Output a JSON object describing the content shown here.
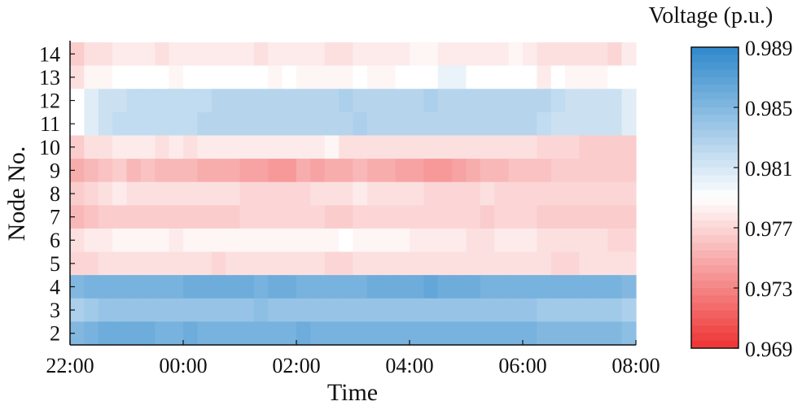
{
  "chart_data": {
    "type": "heatmap",
    "xlabel": "Time",
    "ylabel": "Node No.",
    "x_tick_labels": [
      "22:00",
      "00:00",
      "02:00",
      "04:00",
      "06:00",
      "08:00"
    ],
    "x_range": [
      "22:00",
      "08:00"
    ],
    "y_categories": [
      "14",
      "13",
      "12",
      "11",
      "10",
      "9",
      "8",
      "7",
      "6",
      "5",
      "4",
      "3",
      "2"
    ],
    "colorbar": {
      "title": "Voltage (p.u.)",
      "min": 0.969,
      "max": 0.989,
      "ticks": [
        "0.989",
        "0.985",
        "0.981",
        "0.977",
        "0.973",
        "0.969"
      ],
      "low_color": "#ee3333",
      "mid_color": "#ffffff",
      "high_color": "#2f88cc"
    },
    "grid": false,
    "series": [
      {
        "name": "14",
        "values": [
          0.9765,
          0.9775,
          0.9775,
          0.978,
          0.978,
          0.978,
          0.9775,
          0.978,
          0.978,
          0.978,
          0.978,
          0.978,
          0.978,
          0.9775,
          0.978,
          0.978,
          0.978,
          0.978,
          0.9775,
          0.9775,
          0.978,
          0.978,
          0.978,
          0.978,
          0.9785,
          0.9785,
          0.978,
          0.978,
          0.978,
          0.978,
          0.978,
          0.9785,
          0.978,
          0.9775,
          0.9775,
          0.9775,
          0.9775,
          0.9775,
          0.977,
          0.978
        ]
      },
      {
        "name": "13",
        "values": [
          0.9775,
          0.9785,
          0.9785,
          0.979,
          0.979,
          0.979,
          0.979,
          0.9785,
          0.979,
          0.979,
          0.979,
          0.979,
          0.979,
          0.979,
          0.9785,
          0.979,
          0.9785,
          0.9785,
          0.9785,
          0.9785,
          0.979,
          0.9785,
          0.9785,
          0.979,
          0.979,
          0.979,
          0.98,
          0.98,
          0.979,
          0.979,
          0.979,
          0.979,
          0.979,
          0.978,
          0.979,
          0.9785,
          0.9785,
          0.9785,
          0.979,
          0.979
        ]
      },
      {
        "name": "12",
        "values": [
          0.979,
          0.9805,
          0.9815,
          0.9815,
          0.982,
          0.982,
          0.982,
          0.982,
          0.982,
          0.982,
          0.9825,
          0.9825,
          0.9825,
          0.9825,
          0.9825,
          0.9825,
          0.9825,
          0.9825,
          0.9825,
          0.983,
          0.9825,
          0.9825,
          0.9825,
          0.9825,
          0.9825,
          0.983,
          0.9825,
          0.9825,
          0.9825,
          0.9825,
          0.9825,
          0.9825,
          0.9825,
          0.9825,
          0.982,
          0.9815,
          0.9815,
          0.9815,
          0.9815,
          0.9805
        ]
      },
      {
        "name": "11",
        "values": [
          0.979,
          0.9805,
          0.9815,
          0.982,
          0.982,
          0.982,
          0.982,
          0.982,
          0.982,
          0.9825,
          0.9825,
          0.9825,
          0.9825,
          0.9825,
          0.9825,
          0.9825,
          0.9825,
          0.9825,
          0.9825,
          0.9825,
          0.983,
          0.9825,
          0.9825,
          0.9825,
          0.9825,
          0.9825,
          0.9825,
          0.9825,
          0.9825,
          0.9825,
          0.9825,
          0.9825,
          0.9825,
          0.982,
          0.9815,
          0.9815,
          0.9815,
          0.9815,
          0.9815,
          0.9805
        ]
      },
      {
        "name": "10",
        "values": [
          0.9765,
          0.9775,
          0.9775,
          0.978,
          0.978,
          0.978,
          0.9775,
          0.978,
          0.9775,
          0.978,
          0.978,
          0.978,
          0.978,
          0.978,
          0.978,
          0.978,
          0.978,
          0.978,
          0.9785,
          0.9775,
          0.9775,
          0.9775,
          0.9775,
          0.9775,
          0.9775,
          0.9775,
          0.9775,
          0.9775,
          0.9775,
          0.9775,
          0.9775,
          0.9775,
          0.9775,
          0.977,
          0.977,
          0.977,
          0.9765,
          0.9765,
          0.9765,
          0.9765
        ]
      },
      {
        "name": "9",
        "values": [
          0.975,
          0.9755,
          0.976,
          0.9765,
          0.9755,
          0.976,
          0.9755,
          0.9755,
          0.9755,
          0.975,
          0.975,
          0.975,
          0.9745,
          0.9745,
          0.974,
          0.974,
          0.975,
          0.9745,
          0.975,
          0.975,
          0.9755,
          0.975,
          0.975,
          0.9745,
          0.9745,
          0.974,
          0.974,
          0.9745,
          0.975,
          0.9755,
          0.9755,
          0.976,
          0.976,
          0.976,
          0.9765,
          0.9765,
          0.9765,
          0.9765,
          0.9765,
          0.9765
        ]
      },
      {
        "name": "8",
        "values": [
          0.9765,
          0.977,
          0.9775,
          0.978,
          0.9775,
          0.9775,
          0.9775,
          0.9775,
          0.9775,
          0.9775,
          0.9775,
          0.9775,
          0.977,
          0.977,
          0.977,
          0.977,
          0.977,
          0.9775,
          0.9775,
          0.9775,
          0.978,
          0.9775,
          0.9775,
          0.9775,
          0.9775,
          0.977,
          0.977,
          0.977,
          0.977,
          0.9775,
          0.977,
          0.977,
          0.977,
          0.977,
          0.977,
          0.977,
          0.977,
          0.977,
          0.977,
          0.977
        ]
      },
      {
        "name": "7",
        "values": [
          0.9755,
          0.976,
          0.9765,
          0.9765,
          0.9765,
          0.9765,
          0.9765,
          0.9765,
          0.9765,
          0.9765,
          0.9765,
          0.9765,
          0.977,
          0.977,
          0.977,
          0.977,
          0.977,
          0.977,
          0.9765,
          0.9765,
          0.977,
          0.977,
          0.977,
          0.977,
          0.977,
          0.977,
          0.977,
          0.977,
          0.977,
          0.9765,
          0.977,
          0.977,
          0.977,
          0.9765,
          0.9765,
          0.9765,
          0.9765,
          0.9765,
          0.9765,
          0.9765
        ]
      },
      {
        "name": "6",
        "values": [
          0.9775,
          0.978,
          0.978,
          0.9785,
          0.9785,
          0.9785,
          0.9785,
          0.978,
          0.9785,
          0.9785,
          0.9785,
          0.9785,
          0.9785,
          0.9785,
          0.9785,
          0.9785,
          0.9785,
          0.9785,
          0.9785,
          0.979,
          0.9785,
          0.9785,
          0.9785,
          0.9785,
          0.978,
          0.978,
          0.978,
          0.978,
          0.9775,
          0.9775,
          0.978,
          0.978,
          0.978,
          0.9775,
          0.9775,
          0.9775,
          0.9775,
          0.9775,
          0.977,
          0.977
        ]
      },
      {
        "name": "5",
        "values": [
          0.977,
          0.977,
          0.9775,
          0.9775,
          0.9775,
          0.9775,
          0.9775,
          0.9775,
          0.9775,
          0.9775,
          0.977,
          0.9775,
          0.9775,
          0.9775,
          0.9775,
          0.9775,
          0.9775,
          0.9775,
          0.977,
          0.977,
          0.9775,
          0.9775,
          0.9775,
          0.9775,
          0.9775,
          0.9775,
          0.9775,
          0.9775,
          0.9775,
          0.9775,
          0.9775,
          0.9775,
          0.9775,
          0.9775,
          0.977,
          0.977,
          0.9775,
          0.9775,
          0.9775,
          0.9775
        ]
      },
      {
        "name": "4",
        "values": [
          0.985,
          0.9855,
          0.9855,
          0.9855,
          0.9855,
          0.9855,
          0.9855,
          0.9855,
          0.986,
          0.986,
          0.986,
          0.986,
          0.986,
          0.9855,
          0.986,
          0.986,
          0.9855,
          0.9855,
          0.9855,
          0.9855,
          0.9855,
          0.986,
          0.986,
          0.986,
          0.986,
          0.9865,
          0.986,
          0.986,
          0.986,
          0.9855,
          0.9855,
          0.9855,
          0.9855,
          0.9855,
          0.9855,
          0.9855,
          0.9855,
          0.9855,
          0.9855,
          0.985
        ]
      },
      {
        "name": "3",
        "values": [
          0.983,
          0.9835,
          0.984,
          0.984,
          0.984,
          0.984,
          0.984,
          0.984,
          0.984,
          0.984,
          0.984,
          0.984,
          0.984,
          0.9845,
          0.984,
          0.984,
          0.984,
          0.984,
          0.984,
          0.984,
          0.984,
          0.984,
          0.984,
          0.984,
          0.984,
          0.984,
          0.984,
          0.984,
          0.984,
          0.984,
          0.984,
          0.984,
          0.984,
          0.9835,
          0.9835,
          0.9835,
          0.9835,
          0.9835,
          0.9835,
          0.983
        ]
      },
      {
        "name": "2",
        "values": [
          0.985,
          0.9855,
          0.986,
          0.986,
          0.986,
          0.986,
          0.9855,
          0.9855,
          0.986,
          0.9855,
          0.9855,
          0.9855,
          0.9855,
          0.9855,
          0.9855,
          0.9855,
          0.986,
          0.9855,
          0.9855,
          0.9855,
          0.9855,
          0.9855,
          0.9855,
          0.9855,
          0.9855,
          0.9855,
          0.9855,
          0.9855,
          0.9855,
          0.9855,
          0.9855,
          0.9855,
          0.9855,
          0.985,
          0.985,
          0.985,
          0.985,
          0.985,
          0.985,
          0.9845
        ]
      }
    ]
  }
}
